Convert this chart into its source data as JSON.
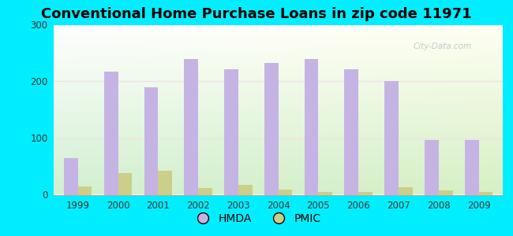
{
  "title": "Conventional Home Purchase Loans in zip code 11971",
  "years": [
    1999,
    2000,
    2001,
    2002,
    2003,
    2004,
    2005,
    2006,
    2007,
    2008,
    2009
  ],
  "hmda": [
    65,
    218,
    190,
    240,
    222,
    232,
    240,
    222,
    201,
    97,
    97
  ],
  "pmic": [
    14,
    38,
    43,
    12,
    18,
    9,
    5,
    5,
    13,
    7,
    5
  ],
  "hmda_color": "#c5b4e3",
  "pmic_color": "#cccf8a",
  "ylim": [
    0,
    300
  ],
  "yticks": [
    0,
    100,
    200,
    300
  ],
  "title_fontsize": 13,
  "background_outer": "#00eeff",
  "legend_hmda": "HMDA",
  "legend_pmic": "PMIC",
  "bar_width": 0.35,
  "watermark": "City-Data.com"
}
